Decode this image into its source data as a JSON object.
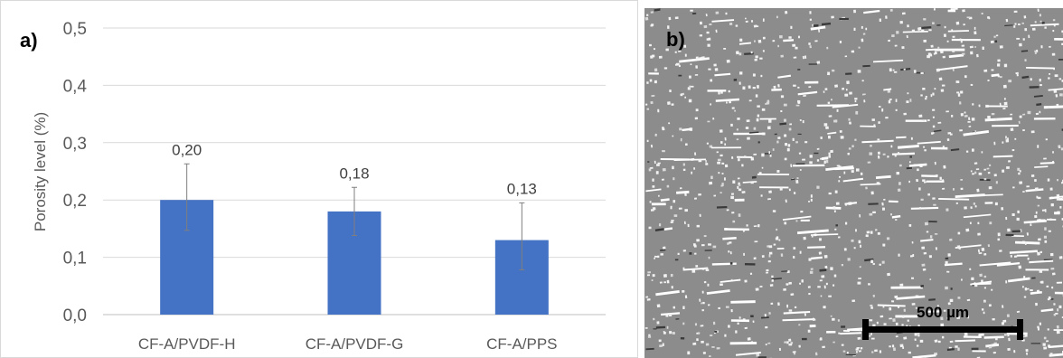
{
  "panel_a_label": "a)",
  "panel_b_label": "b)",
  "scale_bar_label": "500 µm",
  "chart_data": {
    "type": "bar",
    "categories": [
      "CF-A/PVDF-H",
      "CF-A/PVDF-G",
      "CF-A/PPS"
    ],
    "values": [
      0.2,
      0.18,
      0.13
    ],
    "error_bars": [
      [
        0.147,
        0.263
      ],
      [
        0.138,
        0.222
      ],
      [
        0.078,
        0.195
      ]
    ],
    "data_labels": [
      "0,20",
      "0,18",
      "0,13"
    ],
    "title": "",
    "xlabel": "",
    "ylabel": "Porosity level (%)",
    "ylim": [
      0,
      0.5
    ],
    "yticks": [
      "0,0",
      "0,1",
      "0,2",
      "0,3",
      "0,4",
      "0,5"
    ],
    "grid": true,
    "bar_color": "#4472C4"
  }
}
